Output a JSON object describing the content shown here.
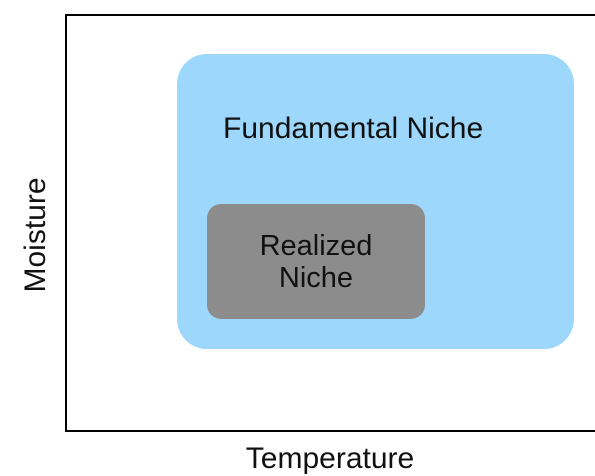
{
  "diagram": {
    "x_axis_label": "Temperature",
    "y_axis_label": "Moisture",
    "fundamental_niche": {
      "label": "Fundamental Niche",
      "color": "#9dd7fb"
    },
    "realized_niche": {
      "label_line1": "Realized",
      "label_line2": "Niche",
      "color": "#8c8c8c"
    }
  }
}
